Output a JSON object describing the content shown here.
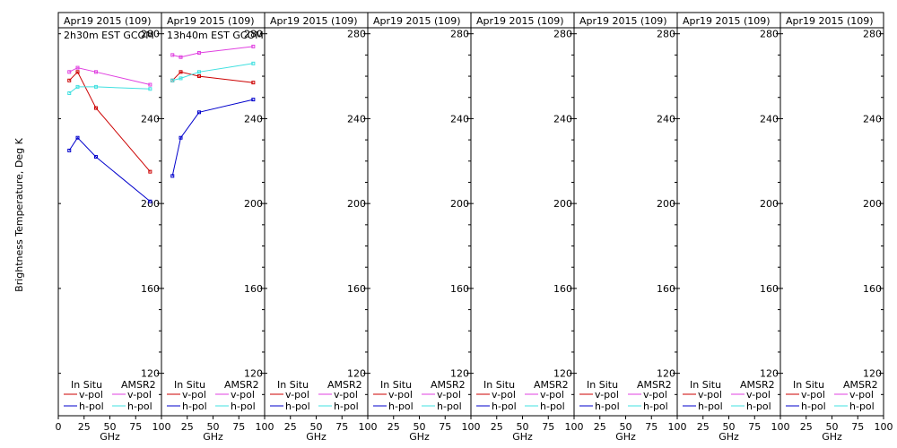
{
  "colors": {
    "insitu_v": "#cc0000",
    "insitu_h": "#0000cc",
    "amsr2_v": "#e040e0",
    "amsr2_h": "#40e0e0",
    "frame": "#000000",
    "background": "#ffffff"
  },
  "chart_data": {
    "type": "line",
    "ylabel": "Brightness Temperature, Deg K",
    "xlabel": "GHz",
    "ylim": [
      100,
      290
    ],
    "yticks": [
      120,
      160,
      200,
      240,
      280
    ],
    "xlim": [
      0,
      100
    ],
    "xticks": [
      0,
      25,
      50,
      75,
      100
    ],
    "grid": false,
    "legend": {
      "headers": [
        "In Situ",
        "AMSR2"
      ],
      "v_label": "v-pol",
      "h_label": "h-pol"
    },
    "panels": [
      {
        "title": "Apr19 2015 (109)",
        "subtitle": "2h30m EST GCOM",
        "series": [
          {
            "name": "In Situ v-pol",
            "color_key": "insitu_v",
            "x": [
              10.65,
              18.7,
              36.5,
              89.0
            ],
            "y": [
              258,
              262,
              245,
              215
            ]
          },
          {
            "name": "In Situ h-pol",
            "color_key": "insitu_h",
            "x": [
              10.65,
              18.7,
              36.5,
              89.0
            ],
            "y": [
              225,
              231,
              222,
              201
            ]
          },
          {
            "name": "AMSR2 v-pol",
            "color_key": "amsr2_v",
            "x": [
              10.65,
              18.7,
              36.5,
              89.0
            ],
            "y": [
              262,
              264,
              262,
              256
            ]
          },
          {
            "name": "AMSR2 h-pol",
            "color_key": "amsr2_h",
            "x": [
              10.65,
              18.7,
              36.5,
              89.0
            ],
            "y": [
              252,
              255,
              255,
              254
            ]
          }
        ]
      },
      {
        "title": "Apr19 2015 (109)",
        "subtitle": "13h40m EST GCOM",
        "series": [
          {
            "name": "In Situ v-pol",
            "color_key": "insitu_v",
            "x": [
              10.65,
              18.7,
              36.5,
              89.0
            ],
            "y": [
              258,
              262,
              260,
              257
            ]
          },
          {
            "name": "In Situ h-pol",
            "color_key": "insitu_h",
            "x": [
              10.65,
              18.7,
              36.5,
              89.0
            ],
            "y": [
              213,
              231,
              243,
              249
            ]
          },
          {
            "name": "AMSR2 v-pol",
            "color_key": "amsr2_v",
            "x": [
              10.65,
              18.7,
              36.5,
              89.0
            ],
            "y": [
              270,
              269,
              271,
              274
            ]
          },
          {
            "name": "AMSR2 h-pol",
            "color_key": "amsr2_h",
            "x": [
              10.65,
              18.7,
              36.5,
              89.0
            ],
            "y": [
              258,
              259,
              262,
              266
            ]
          }
        ]
      },
      {
        "title": "Apr19 2015 (109)",
        "subtitle": "",
        "series": []
      },
      {
        "title": "Apr19 2015 (109)",
        "subtitle": "",
        "series": []
      },
      {
        "title": "Apr19 2015 (109)",
        "subtitle": "",
        "series": []
      },
      {
        "title": "Apr19 2015 (109)",
        "subtitle": "",
        "series": []
      },
      {
        "title": "Apr19 2015 (109)",
        "subtitle": "",
        "series": []
      },
      {
        "title": "Apr19 2015 (109)",
        "subtitle": "",
        "series": []
      }
    ]
  }
}
